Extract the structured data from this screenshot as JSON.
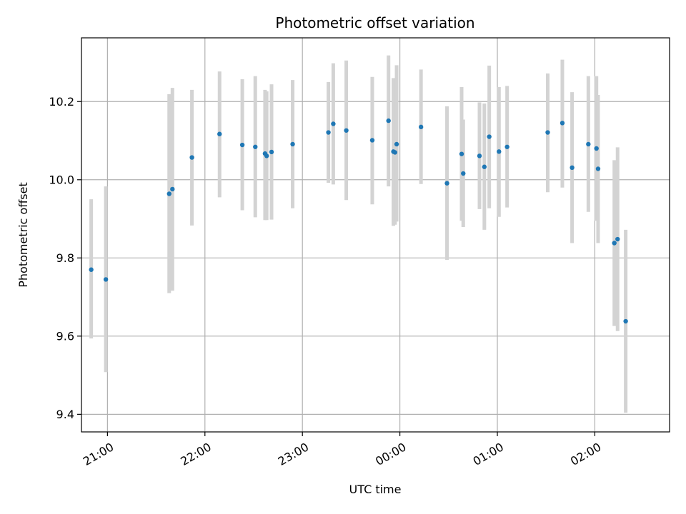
{
  "chart_data": {
    "type": "scatter",
    "title": "Photometric offset variation",
    "xlabel": "UTC time",
    "ylabel": "Photometric offset",
    "x_tick_labels": [
      "21:00",
      "22:00",
      "23:00",
      "00:00",
      "01:00",
      "02:00"
    ],
    "y_tick_labels": [
      "9.4",
      "9.6",
      "9.8",
      "10.0",
      "10.2"
    ],
    "x_ticks": [
      "21:00",
      "22:00",
      "23:00",
      "00:00",
      "01:00",
      "02:00"
    ],
    "y_ticks": [
      9.4,
      9.6,
      9.8,
      10.0,
      10.2
    ],
    "xlim": [
      "20:44",
      "02:46"
    ],
    "ylim": [
      9.355,
      10.363
    ],
    "grid": true,
    "point_color": "#1f77b4",
    "errorbar_color": "#d3d3d3",
    "points": [
      {
        "x": "20:50",
        "y": 9.77,
        "ylow": 9.594,
        "yhigh": 9.95
      },
      {
        "x": "20:59",
        "y": 9.745,
        "ylow": 9.508,
        "yhigh": 9.983
      },
      {
        "x": "21:38",
        "y": 9.964,
        "ylow": 9.71,
        "yhigh": 10.219
      },
      {
        "x": "21:40",
        "y": 9.976,
        "ylow": 9.716,
        "yhigh": 10.235
      },
      {
        "x": "21:52",
        "y": 10.057,
        "ylow": 9.883,
        "yhigh": 10.23
      },
      {
        "x": "22:09",
        "y": 10.117,
        "ylow": 9.955,
        "yhigh": 10.277
      },
      {
        "x": "22:23",
        "y": 10.089,
        "ylow": 9.922,
        "yhigh": 10.257
      },
      {
        "x": "22:31",
        "y": 10.084,
        "ylow": 9.904,
        "yhigh": 10.265
      },
      {
        "x": "22:37",
        "y": 10.067,
        "ylow": 9.897,
        "yhigh": 10.23
      },
      {
        "x": "22:38",
        "y": 10.061,
        "ylow": 9.897,
        "yhigh": 10.226
      },
      {
        "x": "22:41",
        "y": 10.071,
        "ylow": 9.898,
        "yhigh": 10.244
      },
      {
        "x": "22:54",
        "y": 10.091,
        "ylow": 9.927,
        "yhigh": 10.255
      },
      {
        "x": "23:16",
        "y": 10.121,
        "ylow": 9.992,
        "yhigh": 10.25
      },
      {
        "x": "23:19",
        "y": 10.143,
        "ylow": 9.988,
        "yhigh": 10.298
      },
      {
        "x": "23:27",
        "y": 10.126,
        "ylow": 9.948,
        "yhigh": 10.305
      },
      {
        "x": "23:43",
        "y": 10.101,
        "ylow": 9.937,
        "yhigh": 10.263
      },
      {
        "x": "23:53",
        "y": 10.151,
        "ylow": 9.983,
        "yhigh": 10.318
      },
      {
        "x": "23:56",
        "y": 10.072,
        "ylow": 9.882,
        "yhigh": 10.26
      },
      {
        "x": "23:57",
        "y": 10.07,
        "ylow": 9.885,
        "yhigh": 10.258
      },
      {
        "x": "23:58",
        "y": 10.091,
        "ylow": 9.893,
        "yhigh": 10.293
      },
      {
        "x": "00:13",
        "y": 10.135,
        "ylow": 9.989,
        "yhigh": 10.282
      },
      {
        "x": "00:29",
        "y": 9.991,
        "ylow": 9.795,
        "yhigh": 10.188
      },
      {
        "x": "00:38",
        "y": 10.066,
        "ylow": 9.895,
        "yhigh": 10.237
      },
      {
        "x": "00:39",
        "y": 10.016,
        "ylow": 9.879,
        "yhigh": 10.154
      },
      {
        "x": "00:49",
        "y": 10.061,
        "ylow": 9.925,
        "yhigh": 10.198
      },
      {
        "x": "00:52",
        "y": 10.033,
        "ylow": 9.872,
        "yhigh": 10.195
      },
      {
        "x": "00:55",
        "y": 10.11,
        "ylow": 9.927,
        "yhigh": 10.292
      },
      {
        "x": "01:01",
        "y": 10.072,
        "ylow": 9.905,
        "yhigh": 10.237
      },
      {
        "x": "01:06",
        "y": 10.084,
        "ylow": 9.929,
        "yhigh": 10.24
      },
      {
        "x": "01:31",
        "y": 10.121,
        "ylow": 9.968,
        "yhigh": 10.272
      },
      {
        "x": "01:40",
        "y": 10.145,
        "ylow": 9.98,
        "yhigh": 10.307
      },
      {
        "x": "01:46",
        "y": 10.031,
        "ylow": 9.838,
        "yhigh": 10.224
      },
      {
        "x": "01:56",
        "y": 10.091,
        "ylow": 9.918,
        "yhigh": 10.265
      },
      {
        "x": "02:01",
        "y": 10.08,
        "ylow": 9.895,
        "yhigh": 10.265
      },
      {
        "x": "02:02",
        "y": 10.028,
        "ylow": 9.838,
        "yhigh": 10.217
      },
      {
        "x": "02:12",
        "y": 9.838,
        "ylow": 9.626,
        "yhigh": 10.05
      },
      {
        "x": "02:14",
        "y": 9.848,
        "ylow": 9.613,
        "yhigh": 10.083
      },
      {
        "x": "02:19",
        "y": 9.638,
        "ylow": 9.404,
        "yhigh": 9.872
      }
    ]
  }
}
